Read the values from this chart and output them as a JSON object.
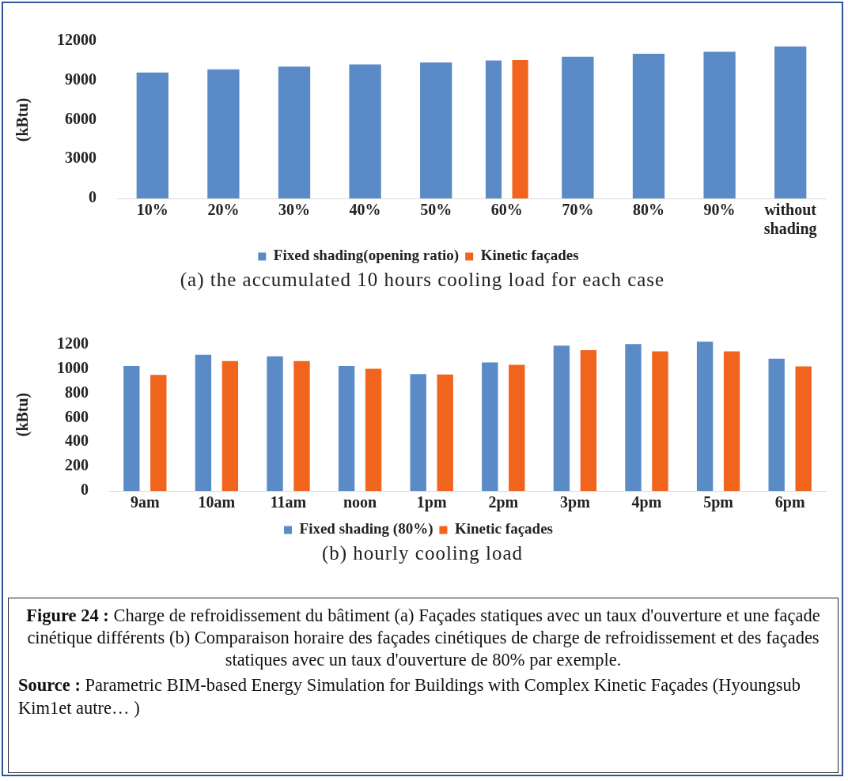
{
  "chart_data": [
    {
      "type": "bar",
      "title": "(a) the accumulated 10 hours cooling load for each case",
      "ylabel": "(kBtu)",
      "categories": [
        "10%",
        "20%",
        "30%",
        "40%",
        "50%",
        "60%",
        "70%",
        "80%",
        "90%",
        "without shading"
      ],
      "series": [
        {
          "name": "Fixed shading(opening ratio)",
          "color": "#5b8bc6",
          "values": [
            9600,
            9840,
            10060,
            10220,
            10370,
            10530,
            10810,
            11030,
            11180,
            11590
          ]
        },
        {
          "name": "Kinetic façades",
          "color": "#f0641e",
          "values": [
            null,
            null,
            null,
            null,
            null,
            10560,
            null,
            null,
            null,
            null
          ]
        }
      ],
      "ylim": [
        0,
        12000
      ],
      "yticks": [
        0,
        3000,
        6000,
        9000,
        12000
      ],
      "grid": false,
      "legend": "bottom"
    },
    {
      "type": "bar",
      "title": "(b) hourly cooling load",
      "ylabel": "(kBtu)",
      "categories": [
        "9am",
        "10am",
        "11am",
        "noon",
        "1pm",
        "2pm",
        "3pm",
        "4pm",
        "5pm",
        "6pm"
      ],
      "series": [
        {
          "name": "Fixed shading (80%)",
          "color": "#5b8bc6",
          "values": [
            1023,
            1115,
            1102,
            1023,
            957,
            1052,
            1190,
            1203,
            1222,
            1083
          ]
        },
        {
          "name": "Kinetic façades",
          "color": "#f0641e",
          "values": [
            950,
            1064,
            1064,
            1001,
            954,
            1033,
            1153,
            1143,
            1143,
            1020
          ]
        }
      ],
      "ylim": [
        0,
        1250
      ],
      "yticks": [
        0,
        200,
        400,
        600,
        800,
        1000,
        1200
      ],
      "grid": false,
      "legend": "bottom",
      "annotations": [
        "Figure 24 : Charge de refroidissement du bâtiment (a) Façades statiques avec un taux d'ouverture et une façade cinétique différents (b) Comparaison horaire des façades cinétiques de charge de refroidissement et des façades statiques avec un taux d'ouverture de 80% par exemple.",
        "Source : Parametric BIM-based Energy Simulation for Buildings with Complex Kinetic Façades  (Hyoungsub Kim1et autre… )"
      ]
    }
  ]
}
